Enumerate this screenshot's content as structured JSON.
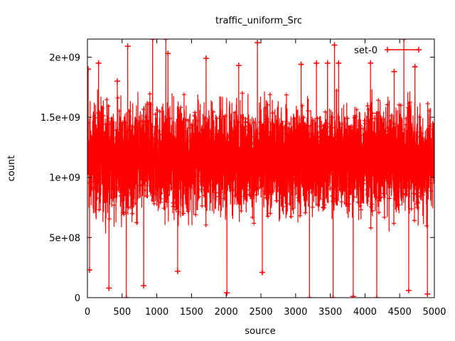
{
  "chart_data": {
    "type": "line",
    "title": "traffic_uniform_Src",
    "xlabel": "source",
    "ylabel": "count",
    "xlim": [
      0,
      5000
    ],
    "ylim": [
      0,
      2150000000
    ],
    "x_ticks": [
      "0",
      "500",
      "1000",
      "1500",
      "2000",
      "2500",
      "3000",
      "3500",
      "4000",
      "4500",
      "5000"
    ],
    "y_ticks": [
      "0",
      "5e+08",
      "1e+09",
      "1.5e+09",
      "2e+09"
    ],
    "legend_position": "top-right",
    "grid": false,
    "series": [
      {
        "name": "set-0",
        "color": "#ff0000",
        "marker": "plus",
        "point_count": 5000,
        "typical_range": [
          450000000,
          1750000000
        ],
        "center": 1150000000,
        "sampled_extremes": [
          {
            "x": 10,
            "y": 1900000000
          },
          {
            "x": 30,
            "y": 230000000
          },
          {
            "x": 160,
            "y": 1950000000
          },
          {
            "x": 310,
            "y": 80000000
          },
          {
            "x": 430,
            "y": 1800000000
          },
          {
            "x": 560,
            "y": 0
          },
          {
            "x": 580,
            "y": 2090000000
          },
          {
            "x": 810,
            "y": 100000000
          },
          {
            "x": 940,
            "y": 2150000000
          },
          {
            "x": 1130,
            "y": 2150000000
          },
          {
            "x": 1160,
            "y": 2030000000
          },
          {
            "x": 1300,
            "y": 220000000
          },
          {
            "x": 1710,
            "y": 1990000000
          },
          {
            "x": 2010,
            "y": 40000000
          },
          {
            "x": 2180,
            "y": 1930000000
          },
          {
            "x": 2450,
            "y": 2120000000
          },
          {
            "x": 2520,
            "y": 210000000
          },
          {
            "x": 3080,
            "y": 1940000000
          },
          {
            "x": 3200,
            "y": 0
          },
          {
            "x": 3300,
            "y": 1950000000
          },
          {
            "x": 3460,
            "y": 1950000000
          },
          {
            "x": 3540,
            "y": 0
          },
          {
            "x": 3560,
            "y": 2100000000
          },
          {
            "x": 3620,
            "y": 1950000000
          },
          {
            "x": 3830,
            "y": 10000000
          },
          {
            "x": 4080,
            "y": 1950000000
          },
          {
            "x": 4170,
            "y": 0
          },
          {
            "x": 4420,
            "y": 1880000000
          },
          {
            "x": 4560,
            "y": 2150000000
          },
          {
            "x": 4630,
            "y": 60000000
          },
          {
            "x": 4720,
            "y": 1920000000
          },
          {
            "x": 4900,
            "y": 30000000
          }
        ]
      }
    ]
  }
}
